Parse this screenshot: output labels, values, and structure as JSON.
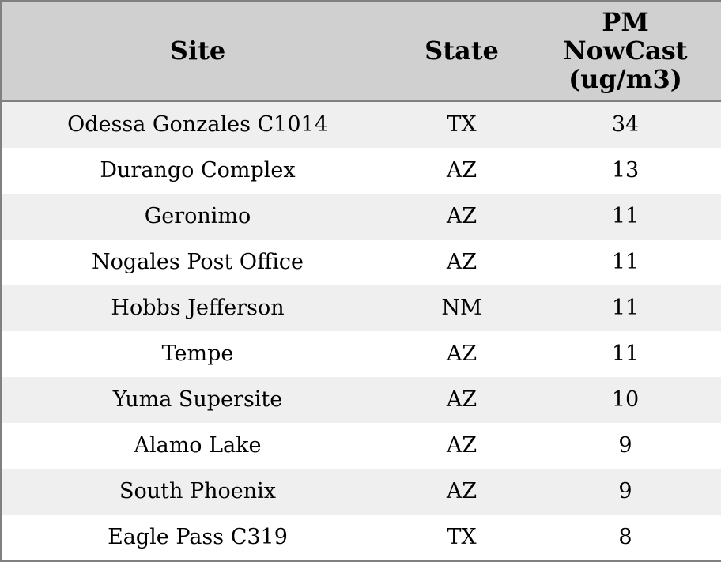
{
  "colors": {
    "header_bg": "#d0d0d0",
    "row_shaded_bg": "#efefef",
    "row_plain_bg": "#ffffff",
    "border": "#808080",
    "text": "#000000"
  },
  "table": {
    "columns": [
      {
        "id": "site",
        "label": "Site"
      },
      {
        "id": "state",
        "label": "State"
      },
      {
        "id": "pm_nowcast",
        "label": "PM NowCast (ug/m3)",
        "lines": [
          "PM",
          "NowCast",
          "(ug/m3)"
        ]
      }
    ],
    "rows": [
      {
        "site": "Odessa Gonzales C1014",
        "state": "TX",
        "pm_nowcast": "34"
      },
      {
        "site": "Durango Complex",
        "state": "AZ",
        "pm_nowcast": "13"
      },
      {
        "site": "Geronimo",
        "state": "AZ",
        "pm_nowcast": "11"
      },
      {
        "site": "Nogales Post Office",
        "state": "AZ",
        "pm_nowcast": "11"
      },
      {
        "site": "Hobbs Jefferson",
        "state": "NM",
        "pm_nowcast": "11"
      },
      {
        "site": "Tempe",
        "state": "AZ",
        "pm_nowcast": "11"
      },
      {
        "site": "Yuma Supersite",
        "state": "AZ",
        "pm_nowcast": "10"
      },
      {
        "site": "Alamo Lake",
        "state": "AZ",
        "pm_nowcast": "9"
      },
      {
        "site": "South Phoenix",
        "state": "AZ",
        "pm_nowcast": "9"
      },
      {
        "site": "Eagle Pass C319",
        "state": "TX",
        "pm_nowcast": "8"
      }
    ]
  },
  "chart_data": {
    "type": "table",
    "title": "",
    "columns": [
      "Site",
      "State",
      "PM NowCast (ug/m3)"
    ],
    "categories": [
      "Odessa Gonzales C1014",
      "Durango Complex",
      "Geronimo",
      "Nogales Post Office",
      "Hobbs Jefferson",
      "Tempe",
      "Yuma Supersite",
      "Alamo Lake",
      "South Phoenix",
      "Eagle Pass C319"
    ],
    "series": [
      {
        "name": "State",
        "values": [
          "TX",
          "AZ",
          "AZ",
          "AZ",
          "NM",
          "AZ",
          "AZ",
          "AZ",
          "AZ",
          "TX"
        ]
      },
      {
        "name": "PM NowCast (ug/m3)",
        "values": [
          34,
          13,
          11,
          11,
          11,
          11,
          10,
          9,
          9,
          8
        ]
      }
    ]
  }
}
